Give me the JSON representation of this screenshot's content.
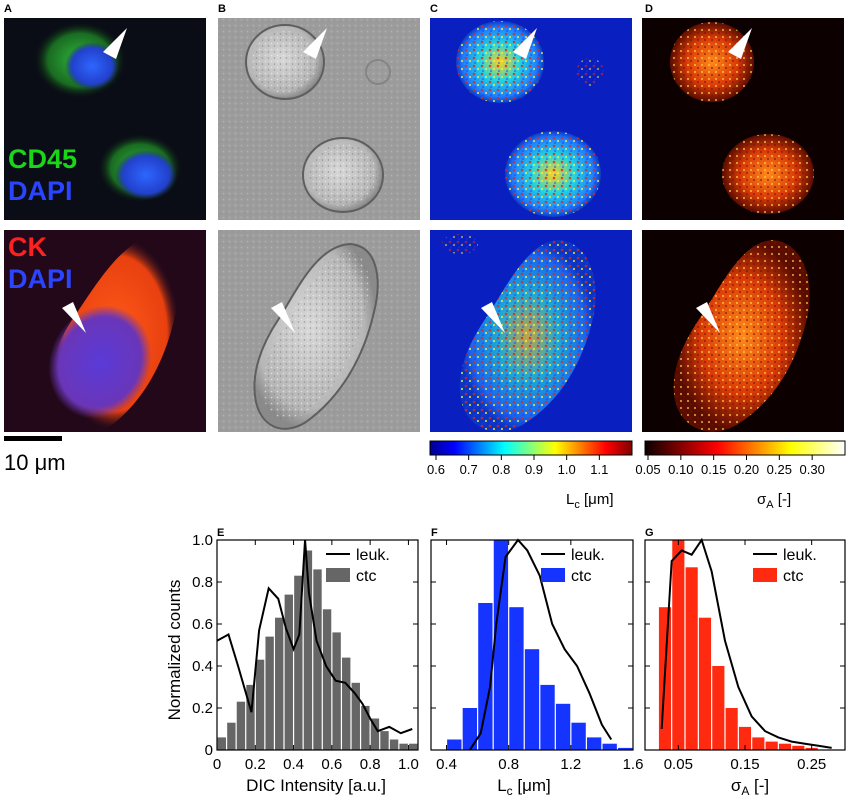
{
  "panel_letters": [
    "A",
    "B",
    "C",
    "D",
    "E",
    "F",
    "G"
  ],
  "fluorescence_labels": {
    "top": [
      "CD45",
      "DAPI"
    ],
    "bottom": [
      "CK",
      "DAPI"
    ]
  },
  "label_colors": {
    "cd45": "#19d619",
    "dapi": "#2a44ff",
    "ck": "#ff2020",
    "ctc_E": "#666666",
    "ctc_F": "#1534ff",
    "ctc_G": "#ff2a10",
    "leuk_line": "#000000"
  },
  "scalebar_label": "10 μm",
  "colorbars": {
    "lc": {
      "ticks": [
        "0.6",
        "0.7",
        "0.8",
        "0.9",
        "1.0",
        "1.1"
      ],
      "label_main": "L",
      "label_sub": "c",
      "label_suffix": " [μm]",
      "colormap": "jet"
    },
    "sigma": {
      "ticks": [
        "0.05",
        "0.10",
        "0.15",
        "0.20",
        "0.25",
        "0.30"
      ],
      "label_main": "σ",
      "label_sub": "A",
      "label_suffix": " [-]",
      "colormap": "hot"
    }
  },
  "chart_data": [
    {
      "panel": "E",
      "type": "bar",
      "ylabel": "Normalized counts",
      "xlabel": "DIC Intensity [a.u.]",
      "xlim": [
        0,
        1.05
      ],
      "ylim": [
        0,
        1.0
      ],
      "xticks": [
        "0",
        "0.2",
        "0.4",
        "0.6",
        "0.8",
        "1.0"
      ],
      "yticks": [
        "0",
        "0.2",
        "0.4",
        "0.6",
        "0.8",
        "1.0"
      ],
      "legend": [
        "leuk.",
        "ctc"
      ],
      "legend_position": "top-right",
      "ctc_bins": {
        "x": [
          0.025,
          0.075,
          0.125,
          0.175,
          0.225,
          0.275,
          0.325,
          0.375,
          0.425,
          0.475,
          0.525,
          0.575,
          0.625,
          0.675,
          0.725,
          0.775,
          0.825,
          0.875,
          0.925,
          0.975,
          1.025
        ],
        "y": [
          0.06,
          0.13,
          0.23,
          0.31,
          0.43,
          0.54,
          0.63,
          0.74,
          0.83,
          0.95,
          0.86,
          0.67,
          0.56,
          0.44,
          0.32,
          0.21,
          0.15,
          0.09,
          0.05,
          0.03,
          0.03
        ]
      },
      "leuk_line": {
        "x": [
          0.0,
          0.06,
          0.11,
          0.18,
          0.22,
          0.27,
          0.32,
          0.36,
          0.4,
          0.43,
          0.46,
          0.48,
          0.52,
          0.57,
          0.62,
          0.67,
          0.72,
          0.76,
          0.8,
          0.84,
          0.9,
          0.96,
          1.02
        ],
        "y": [
          0.52,
          0.55,
          0.4,
          0.18,
          0.57,
          0.77,
          0.72,
          0.58,
          0.48,
          0.55,
          1.0,
          0.75,
          0.52,
          0.4,
          0.33,
          0.32,
          0.27,
          0.22,
          0.15,
          0.09,
          0.11,
          0.08,
          0.1
        ]
      }
    },
    {
      "panel": "F",
      "type": "bar",
      "xlabel_main": "L",
      "xlabel_sub": "c",
      "xlabel_suffix": " [μm]",
      "xlim": [
        0.3,
        1.6
      ],
      "ylim": [
        0,
        1.0
      ],
      "xticks": [
        "0.4",
        "0.8",
        "1.2",
        "1.6"
      ],
      "legend": [
        "leuk.",
        "ctc"
      ],
      "legend_position": "top-right",
      "ctc_bins": {
        "x": [
          0.45,
          0.55,
          0.65,
          0.75,
          0.85,
          0.95,
          1.05,
          1.15,
          1.25,
          1.35,
          1.45,
          1.55
        ],
        "y": [
          0.05,
          0.2,
          0.7,
          1.0,
          0.68,
          0.48,
          0.31,
          0.22,
          0.13,
          0.06,
          0.03,
          0.01
        ]
      },
      "leuk_line": {
        "x": [
          0.55,
          0.62,
          0.68,
          0.72,
          0.78,
          0.86,
          0.92,
          1.0,
          1.08,
          1.16,
          1.24,
          1.32,
          1.4,
          1.46
        ],
        "y": [
          0.0,
          0.08,
          0.3,
          0.6,
          0.92,
          1.0,
          0.95,
          0.83,
          0.6,
          0.48,
          0.4,
          0.27,
          0.12,
          0.05
        ]
      }
    },
    {
      "panel": "G",
      "type": "bar",
      "xlabel_main": "σ",
      "xlabel_sub": "A",
      "xlabel_suffix": " [-]",
      "xlim": [
        0.0,
        0.3
      ],
      "ylim": [
        0,
        1.0
      ],
      "xticks": [
        "0.05",
        "0.15",
        "0.25"
      ],
      "legend": [
        "leuk.",
        "ctc"
      ],
      "legend_position": "top-right",
      "ctc_bins": {
        "x": [
          0.03,
          0.05,
          0.07,
          0.09,
          0.11,
          0.13,
          0.15,
          0.17,
          0.19,
          0.21,
          0.23,
          0.25
        ],
        "y": [
          0.68,
          1.0,
          0.87,
          0.63,
          0.4,
          0.2,
          0.11,
          0.06,
          0.04,
          0.03,
          0.02,
          0.01
        ]
      },
      "leuk_line": {
        "x": [
          0.025,
          0.04,
          0.055,
          0.07,
          0.085,
          0.1,
          0.12,
          0.14,
          0.16,
          0.18,
          0.2,
          0.22,
          0.24,
          0.26,
          0.28
        ],
        "y": [
          0.1,
          0.9,
          0.95,
          0.93,
          1.0,
          0.85,
          0.52,
          0.3,
          0.16,
          0.09,
          0.06,
          0.04,
          0.03,
          0.02,
          0.01
        ]
      }
    }
  ]
}
